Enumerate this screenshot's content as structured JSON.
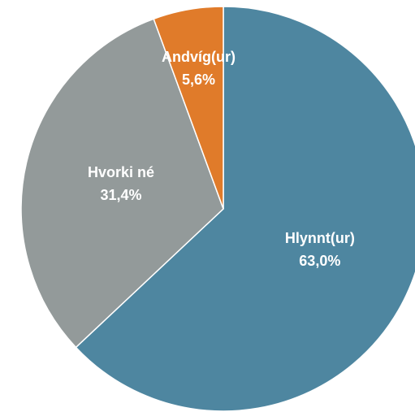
{
  "chart_data": {
    "type": "pie",
    "categories": [
      "Hlynnt(ur)",
      "Hvorki né",
      "Andvíg(ur)"
    ],
    "values": [
      63.0,
      31.4,
      5.6
    ],
    "value_labels": [
      "63,0%",
      "31,4%",
      "5,6%"
    ],
    "colors": [
      "#4e86a0",
      "#939a9a",
      "#e07b2a"
    ]
  }
}
